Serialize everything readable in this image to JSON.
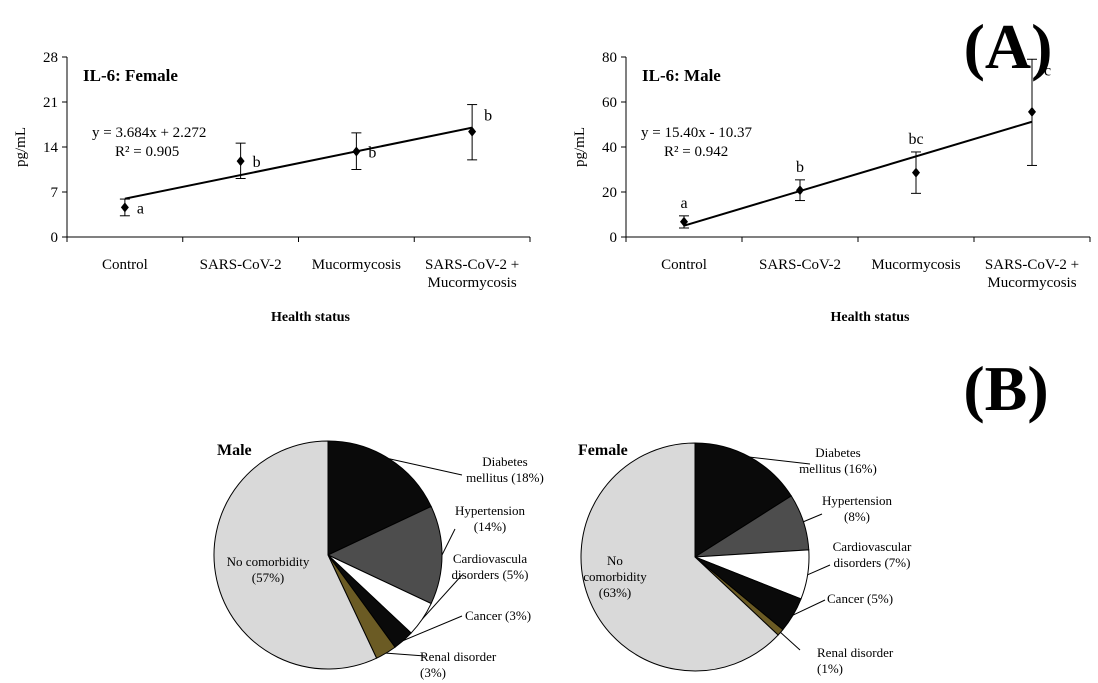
{
  "panel_labels": {
    "a": "(A)",
    "b": "(B)"
  },
  "chart_data": [
    {
      "type": "scatter",
      "title": "IL-6: Female",
      "ylabel": "pg/mL",
      "xlabel": "Health status",
      "categories": [
        "Control",
        "SARS-CoV-2",
        "Mucormycosis",
        "SARS-CoV-2 + Mucormycosis"
      ],
      "category_lines": [
        [
          "Control"
        ],
        [
          "SARS-CoV-2"
        ],
        [
          "Mucormycosis"
        ],
        [
          "SARS-CoV-2 +",
          "Mucormycosis"
        ]
      ],
      "values": [
        4.6,
        11.8,
        13.3,
        16.4
      ],
      "error_low": [
        3.3,
        9.1,
        10.5,
        12.0
      ],
      "error_high": [
        5.9,
        14.6,
        16.2,
        20.6
      ],
      "letters": [
        "a",
        "b",
        "b",
        "b"
      ],
      "trendline": {
        "slope": 3.684,
        "intercept": 2.272
      },
      "equation": "y = 3.684x + 2.272",
      "r_squared": "R² = 0.905",
      "ylim": [
        0,
        28
      ],
      "yticks": [
        "0",
        "7",
        "14",
        "21",
        "28"
      ],
      "ytick_values": [
        0,
        7,
        14,
        21,
        28
      ],
      "grid": false
    },
    {
      "type": "scatter",
      "title": "IL-6: Male",
      "ylabel": "pg/mL",
      "xlabel": "Health status",
      "categories": [
        "Control",
        "SARS-CoV-2",
        "Mucormycosis",
        "SARS-CoV-2 + Mucormycosis"
      ],
      "category_lines": [
        [
          "Control"
        ],
        [
          "SARS-CoV-2"
        ],
        [
          "Mucormycosis"
        ],
        [
          "SARS-CoV-2 +",
          "Mucormycosis"
        ]
      ],
      "values": [
        6.8,
        20.8,
        28.6,
        55.6
      ],
      "error_low": [
        4.0,
        16.2,
        19.4,
        31.8
      ],
      "error_high": [
        9.4,
        25.4,
        37.8,
        79.0
      ],
      "letters": [
        "a",
        "b",
        "bc",
        "c"
      ],
      "trendline": {
        "slope": 15.4,
        "intercept": -10.37
      },
      "equation": "y = 15.40x - 10.37",
      "r_squared": "R² = 0.942",
      "ylim": [
        0,
        80
      ],
      "yticks": [
        "0",
        "20",
        "40",
        "60",
        "80"
      ],
      "ytick_values": [
        0,
        20,
        40,
        60,
        80
      ],
      "grid": false
    },
    {
      "type": "pie",
      "title": "Male",
      "slices": [
        {
          "label_lines": [
            "Diabetes",
            "mellitus (18%)"
          ],
          "value": 18,
          "color": "#0a0a0a"
        },
        {
          "label_lines": [
            "Hypertension",
            "(14%)"
          ],
          "value": 14,
          "color": "#4d4d4d"
        },
        {
          "label_lines": [
            "Cardiovascula",
            "disorders (5%)"
          ],
          "value": 5,
          "color": "#ffffff"
        },
        {
          "label_lines": [
            "Cancer (3%)"
          ],
          "value": 3,
          "color": "#0a0a0a"
        },
        {
          "label_lines": [
            "Renal disorder",
            "(3%)"
          ],
          "value": 3,
          "color": "#6b5b24"
        },
        {
          "label_lines": [
            "No comorbidity",
            "(57%)"
          ],
          "value": 57,
          "color": "#d9d9d9"
        }
      ]
    },
    {
      "type": "pie",
      "title": "Female",
      "slices": [
        {
          "label_lines": [
            "Diabetes",
            "mellitus (16%)"
          ],
          "value": 16,
          "color": "#0a0a0a"
        },
        {
          "label_lines": [
            "Hypertension",
            "(8%)"
          ],
          "value": 8,
          "color": "#4d4d4d"
        },
        {
          "label_lines": [
            "Cardiovascular",
            "disorders (7%)"
          ],
          "value": 7,
          "color": "#ffffff"
        },
        {
          "label_lines": [
            "Cancer (5%)"
          ],
          "value": 5,
          "color": "#0a0a0a"
        },
        {
          "label_lines": [
            "Renal disorder",
            "(1%)"
          ],
          "value": 1,
          "color": "#6b5b24"
        },
        {
          "label_lines": [
            "No",
            "comorbidity",
            "(63%)"
          ],
          "value": 63,
          "color": "#d9d9d9"
        }
      ]
    }
  ]
}
